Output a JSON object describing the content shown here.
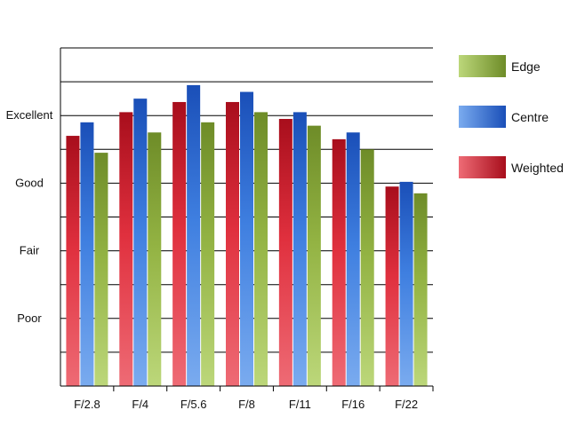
{
  "chart_data": {
    "type": "bar",
    "categories": [
      "F/2.8",
      "F/4",
      "F/5.6",
      "F/8",
      "F/11",
      "F/16",
      "F/22"
    ],
    "series": [
      {
        "name": "Weighted",
        "values": [
          3.7,
          4.05,
          4.2,
          4.2,
          3.95,
          3.65,
          2.95
        ]
      },
      {
        "name": "Centre",
        "values": [
          3.9,
          4.25,
          4.45,
          4.35,
          4.05,
          3.75,
          3.02
        ]
      },
      {
        "name": "Edge",
        "values": [
          3.45,
          3.75,
          3.9,
          4.05,
          3.85,
          3.5,
          2.85
        ]
      }
    ],
    "y_ticks": [
      {
        "value": 1,
        "label": "Poor"
      },
      {
        "value": 2,
        "label": "Fair"
      },
      {
        "value": 3,
        "label": "Good"
      },
      {
        "value": 4,
        "label": "Excellent"
      }
    ],
    "ylim": [
      0,
      5
    ],
    "grid": true,
    "legend_order": [
      "Edge",
      "Centre",
      "Weighted"
    ],
    "legend_position": "right",
    "colors": {
      "Weighted": {
        "top": "#a80e1c",
        "mid": "#e0303e",
        "bottom": "#ee6b75"
      },
      "Centre": {
        "top": "#1a4fb8",
        "mid": "#3f7fe0",
        "bottom": "#7aabef"
      },
      "Edge": {
        "top": "#6e8c28",
        "mid": "#93b343",
        "bottom": "#bcd77a"
      }
    }
  }
}
